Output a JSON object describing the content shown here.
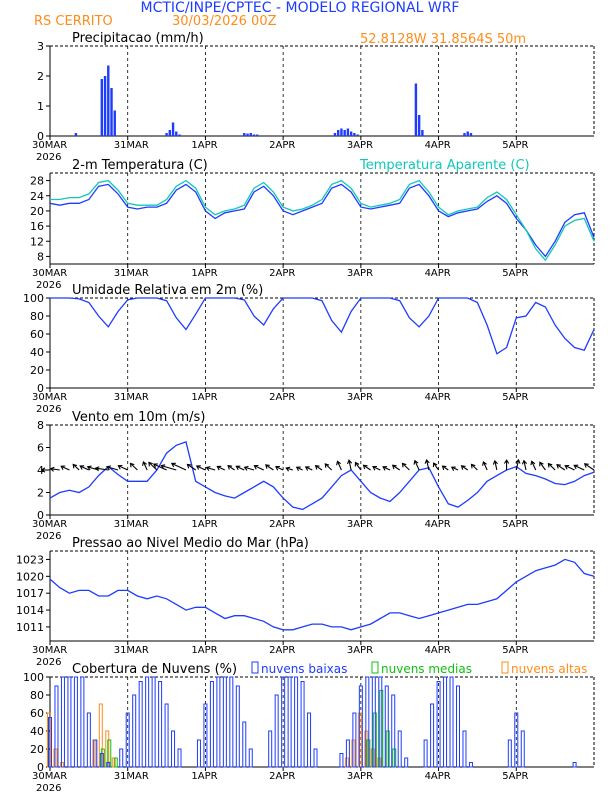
{
  "header": {
    "title": "MCTIC/INPE/CPTEC - MODELO REGIONAL WRF",
    "city": "RS CERRITO",
    "run": "30/03/2026 00Z",
    "location": "52.8128W  31.8564S  50m"
  },
  "colors": {
    "title": "#1e3cff",
    "orange": "#ff8c1a",
    "blue": "#1e3cff",
    "cyan": "#10c8b8",
    "green": "#10c010",
    "black": "#000000"
  },
  "x_axis": {
    "tick_labels": [
      "30MAR",
      "31MAR",
      "1APR",
      "2APR",
      "3APR",
      "4APR",
      "5APR"
    ],
    "tick_hours": [
      0,
      24,
      48,
      72,
      96,
      120,
      144
    ],
    "year_label": "2026",
    "range_hours": [
      0,
      168
    ]
  },
  "chart_data": [
    {
      "id": "precip",
      "type": "bar",
      "title": "Precipitacao (mm/h)",
      "ylim": [
        0,
        3
      ],
      "yticks": [
        0,
        1,
        2,
        3
      ],
      "x_hours": [
        8,
        16,
        17,
        18,
        19,
        20,
        36,
        37,
        38,
        39,
        40,
        60,
        61,
        62,
        63,
        64,
        88,
        89,
        90,
        91,
        92,
        93,
        94,
        95,
        113,
        114,
        115,
        128,
        129,
        130
      ],
      "values": [
        0.1,
        1.9,
        2.0,
        2.35,
        1.6,
        0.85,
        0.1,
        0.2,
        0.45,
        0.15,
        0.05,
        0.1,
        0.08,
        0.1,
        0.05,
        0.05,
        0.1,
        0.2,
        0.25,
        0.2,
        0.25,
        0.15,
        0.1,
        0.05,
        1.75,
        0.7,
        0.2,
        0.1,
        0.15,
        0.1
      ]
    },
    {
      "id": "temperature",
      "type": "line",
      "title": "2-m Temperatura (C)",
      "legend": "Temperatura Aparente (C)",
      "ylim": [
        6,
        30
      ],
      "yticks": [
        8,
        12,
        16,
        20,
        24,
        28
      ],
      "x_hours": [
        0,
        3,
        6,
        9,
        12,
        15,
        18,
        21,
        24,
        27,
        30,
        33,
        36,
        39,
        42,
        45,
        48,
        51,
        54,
        57,
        60,
        63,
        66,
        69,
        72,
        75,
        78,
        81,
        84,
        87,
        90,
        93,
        96,
        99,
        102,
        105,
        108,
        111,
        114,
        117,
        120,
        123,
        126,
        129,
        132,
        135,
        138,
        141,
        144,
        147,
        150,
        153,
        156,
        159,
        162,
        165,
        168
      ],
      "series": [
        {
          "name": "2-m Temperatura (C)",
          "values": [
            22,
            21.5,
            22,
            22,
            23,
            26.5,
            27,
            24.5,
            21,
            20.5,
            21,
            21,
            22,
            25.5,
            27,
            25,
            20,
            18,
            19.5,
            20,
            20.5,
            25,
            26.5,
            24,
            20,
            19,
            20,
            21,
            22,
            26,
            27,
            25,
            21,
            20.5,
            21,
            21.5,
            22,
            26,
            27,
            24,
            20,
            18.5,
            19.5,
            20,
            20.5,
            22.5,
            24,
            22,
            18,
            15,
            11,
            8,
            12,
            17,
            19,
            19.5,
            13
          ]
        },
        {
          "name": "Temperatura Aparente (C)",
          "values": [
            23,
            23,
            23.5,
            23.5,
            24.5,
            27.5,
            28,
            25.5,
            22,
            21.5,
            21.5,
            21.5,
            23,
            26.5,
            28,
            26,
            21,
            19,
            20,
            20.5,
            21.5,
            26,
            27.5,
            25,
            21,
            20,
            20.5,
            21.5,
            23,
            27,
            28,
            26,
            22,
            21,
            21.5,
            22,
            23,
            27,
            28,
            25,
            21,
            19,
            20,
            20.5,
            21,
            23.5,
            25,
            23,
            19,
            15,
            10,
            7,
            11,
            16,
            17.5,
            18,
            12
          ]
        }
      ]
    },
    {
      "id": "humidity",
      "type": "line",
      "title": "Umidade Relativa em 2m (%)",
      "ylim": [
        0,
        100
      ],
      "yticks": [
        0,
        20,
        40,
        60,
        80,
        100
      ],
      "x_hours": [
        0,
        3,
        6,
        9,
        12,
        15,
        18,
        21,
        24,
        27,
        30,
        33,
        36,
        39,
        42,
        45,
        48,
        51,
        54,
        57,
        60,
        63,
        66,
        69,
        72,
        75,
        78,
        81,
        84,
        87,
        90,
        93,
        96,
        99,
        102,
        105,
        108,
        111,
        114,
        117,
        120,
        123,
        126,
        129,
        132,
        135,
        138,
        141,
        144,
        147,
        150,
        153,
        156,
        159,
        162,
        165,
        168
      ],
      "series": [
        {
          "name": "Umidade Relativa em 2m (%)",
          "values": [
            100,
            100,
            100,
            99,
            95,
            80,
            68,
            85,
            98,
            100,
            100,
            100,
            97,
            78,
            65,
            82,
            100,
            100,
            100,
            100,
            98,
            80,
            70,
            88,
            100,
            100,
            100,
            100,
            97,
            75,
            62,
            85,
            100,
            100,
            100,
            100,
            97,
            78,
            68,
            80,
            100,
            100,
            100,
            100,
            95,
            70,
            38,
            45,
            78,
            80,
            95,
            90,
            70,
            55,
            45,
            42,
            65
          ]
        }
      ]
    },
    {
      "id": "wind",
      "type": "line",
      "title": "Vento em 10m (m/s)",
      "ylim": [
        0,
        8
      ],
      "yticks": [
        0,
        2,
        4,
        6,
        8
      ],
      "x_hours": [
        0,
        3,
        6,
        9,
        12,
        15,
        18,
        21,
        24,
        27,
        30,
        33,
        36,
        39,
        42,
        45,
        48,
        51,
        54,
        57,
        60,
        63,
        66,
        69,
        72,
        75,
        78,
        81,
        84,
        87,
        90,
        93,
        96,
        99,
        102,
        105,
        108,
        111,
        114,
        117,
        120,
        123,
        126,
        129,
        132,
        135,
        138,
        141,
        144,
        147,
        150,
        153,
        156,
        159,
        162,
        165,
        168
      ],
      "series": [
        {
          "name": "Vento em 10m (m/s)",
          "values": [
            1.5,
            2,
            2.2,
            2,
            2.5,
            3.5,
            4.3,
            3.6,
            3,
            3,
            3,
            4,
            5.5,
            6.2,
            6.5,
            3,
            2.5,
            2,
            1.7,
            1.5,
            2,
            2.5,
            3,
            2.5,
            1.5,
            0.7,
            0.5,
            1,
            1.5,
            2.5,
            3.5,
            4,
            3,
            2,
            1.5,
            1.2,
            2,
            3,
            4,
            4.2,
            2.5,
            1,
            0.7,
            1.3,
            2,
            3,
            3.5,
            4,
            4.3,
            3.7,
            3.5,
            3.2,
            2.8,
            2.7,
            3,
            3.5,
            3.8
          ]
        }
      ],
      "arrow_direction_deg": [
        270,
        280,
        300,
        320,
        300,
        290,
        280,
        290,
        300,
        320,
        340,
        320,
        300,
        290,
        300,
        310,
        300,
        290,
        300,
        310,
        300,
        290,
        300,
        310,
        300,
        290,
        300,
        300,
        310,
        320,
        340,
        350,
        330,
        310,
        300,
        300,
        310,
        320,
        340,
        350,
        330,
        310,
        300,
        310,
        320,
        340,
        350,
        0,
        10,
        350,
        340,
        330,
        320,
        310,
        300,
        300,
        310
      ]
    },
    {
      "id": "pressure",
      "type": "line",
      "title": "Pressao ao Nivel Medio do Mar (hPa)",
      "ylim": [
        1008.5,
        1024.5
      ],
      "yticks": [
        1011,
        1014,
        1017,
        1020,
        1023
      ],
      "x_hours": [
        0,
        3,
        6,
        9,
        12,
        15,
        18,
        21,
        24,
        27,
        30,
        33,
        36,
        39,
        42,
        45,
        48,
        51,
        54,
        57,
        60,
        63,
        66,
        69,
        72,
        75,
        78,
        81,
        84,
        87,
        90,
        93,
        96,
        99,
        102,
        105,
        108,
        111,
        114,
        117,
        120,
        123,
        126,
        129,
        132,
        135,
        138,
        141,
        144,
        147,
        150,
        153,
        156,
        159,
        162,
        165,
        168
      ],
      "series": [
        {
          "name": "Pressao ao Nivel Medio do Mar (hPa)",
          "values": [
            1019.5,
            1018,
            1017,
            1017.5,
            1017.5,
            1016.5,
            1016.5,
            1017.5,
            1017.5,
            1016.5,
            1016,
            1016.5,
            1016,
            1015,
            1014,
            1014.5,
            1014.5,
            1013.5,
            1012.5,
            1013,
            1013,
            1012.5,
            1012,
            1011,
            1010.5,
            1010.5,
            1011,
            1011.5,
            1011.5,
            1011,
            1011,
            1010.5,
            1011,
            1011.5,
            1012.5,
            1013.5,
            1013.5,
            1013,
            1012.5,
            1013,
            1013.5,
            1014,
            1014.5,
            1015,
            1015,
            1015.5,
            1016,
            1017.5,
            1019,
            1020,
            1021,
            1021.5,
            1022,
            1023,
            1022.5,
            1020.5,
            1020
          ]
        }
      ]
    },
    {
      "id": "clouds",
      "type": "bar",
      "title": "Cobertura de Nuvens (%)",
      "legend": [
        "nuvens baixas",
        "nuvens medias",
        "nuvens altas"
      ],
      "ylim": [
        0,
        100
      ],
      "yticks": [
        0,
        20,
        40,
        60,
        80,
        100
      ],
      "x_hours": [
        0,
        2,
        4,
        6,
        8,
        10,
        12,
        14,
        16,
        18,
        20,
        22,
        24,
        26,
        28,
        30,
        32,
        34,
        36,
        38,
        40,
        42,
        44,
        46,
        48,
        50,
        52,
        54,
        56,
        58,
        60,
        62,
        64,
        66,
        68,
        70,
        72,
        74,
        76,
        78,
        80,
        82,
        84,
        86,
        88,
        90,
        92,
        94,
        96,
        98,
        100,
        102,
        104,
        106,
        108,
        110,
        112,
        114,
        116,
        118,
        120,
        122,
        124,
        126,
        128,
        130,
        132,
        134,
        136,
        138,
        140,
        142,
        144,
        146,
        148,
        150,
        152,
        154,
        156,
        158,
        160,
        162,
        164,
        166
      ],
      "series": [
        {
          "name": "nuvens baixas",
          "values": [
            55,
            90,
            100,
            100,
            100,
            100,
            60,
            30,
            15,
            5,
            0,
            20,
            60,
            80,
            95,
            100,
            100,
            95,
            70,
            40,
            20,
            0,
            0,
            30,
            70,
            95,
            100,
            100,
            100,
            90,
            50,
            20,
            0,
            0,
            40,
            80,
            100,
            100,
            100,
            95,
            60,
            20,
            0,
            0,
            0,
            15,
            30,
            60,
            90,
            100,
            100,
            100,
            90,
            80,
            40,
            10,
            0,
            0,
            30,
            70,
            95,
            100,
            100,
            90,
            40,
            5,
            0,
            0,
            0,
            0,
            0,
            30,
            60,
            40,
            0,
            0,
            0,
            0,
            0,
            0,
            0,
            5,
            0,
            0
          ]
        },
        {
          "name": "nuvens medias",
          "values": [
            0,
            0,
            0,
            0,
            0,
            0,
            0,
            0,
            20,
            30,
            10,
            0,
            0,
            0,
            0,
            0,
            0,
            0,
            0,
            0,
            0,
            0,
            0,
            0,
            0,
            0,
            0,
            0,
            0,
            0,
            0,
            0,
            0,
            0,
            0,
            0,
            0,
            0,
            0,
            0,
            0,
            0,
            0,
            0,
            0,
            0,
            0,
            0,
            0,
            30,
            60,
            85,
            40,
            20,
            0,
            0,
            0,
            0,
            0,
            0,
            0,
            0,
            0,
            0,
            0,
            0,
            0,
            0,
            0,
            0,
            0,
            0,
            0,
            0,
            0,
            0,
            0,
            0,
            0,
            0,
            0,
            0,
            0,
            0
          ]
        },
        {
          "name": "nuvens altas",
          "values": [
            60,
            20,
            5,
            0,
            0,
            0,
            0,
            30,
            70,
            40,
            10,
            0,
            0,
            0,
            0,
            0,
            0,
            0,
            0,
            0,
            0,
            0,
            0,
            0,
            0,
            0,
            0,
            0,
            0,
            0,
            0,
            0,
            0,
            0,
            0,
            0,
            0,
            0,
            0,
            0,
            0,
            0,
            0,
            0,
            0,
            0,
            10,
            30,
            60,
            40,
            20,
            10,
            0,
            0,
            0,
            0,
            0,
            0,
            0,
            0,
            0,
            0,
            0,
            0,
            0,
            0,
            0,
            0,
            0,
            0,
            0,
            0,
            0,
            0,
            0,
            0,
            0,
            0,
            0,
            0,
            0,
            0,
            0,
            0
          ]
        }
      ]
    }
  ]
}
